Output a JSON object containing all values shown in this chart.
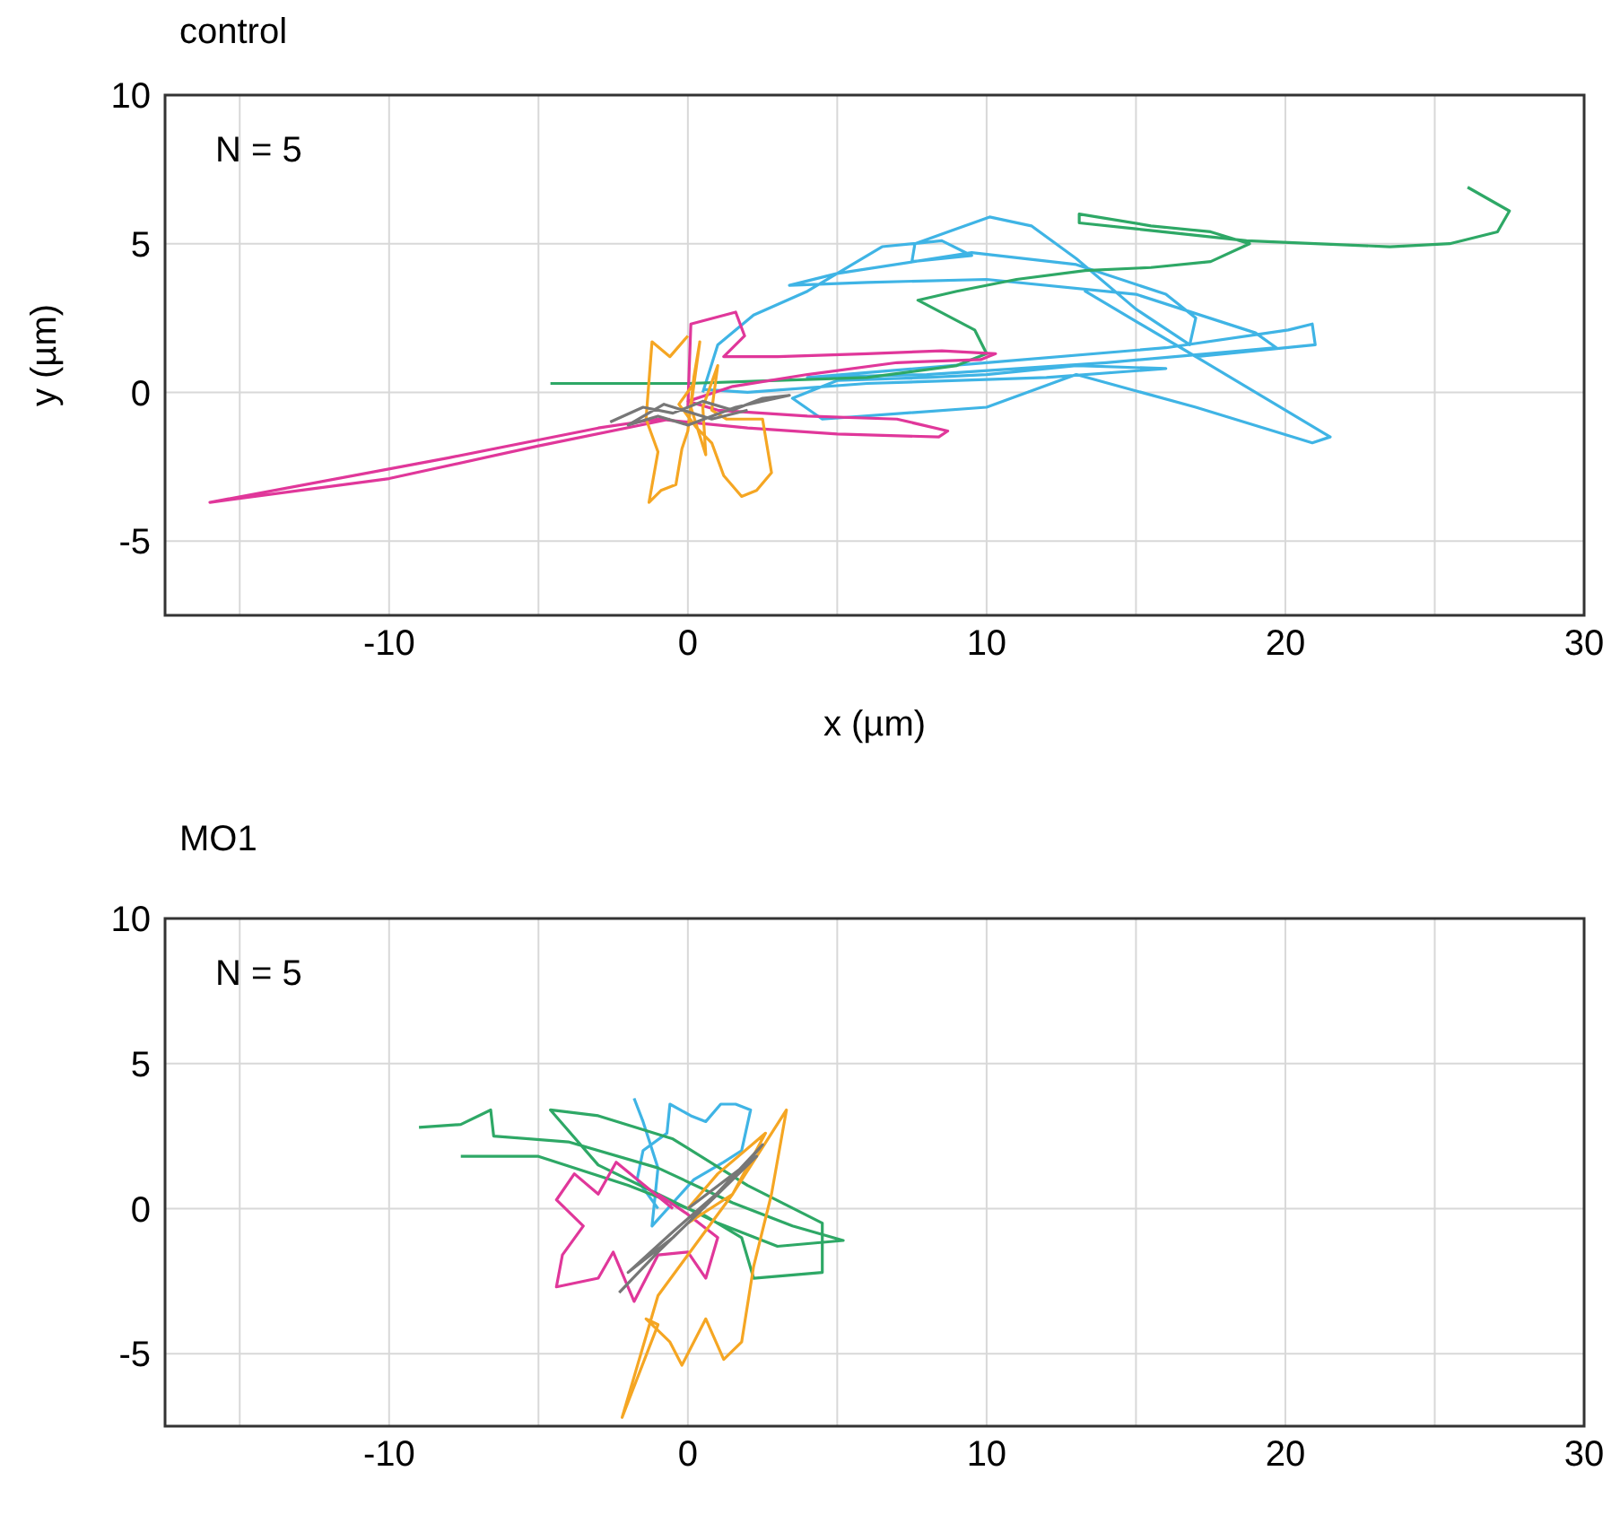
{
  "chart_data": [
    {
      "type": "line",
      "title": "control",
      "xlabel": "x (µm)",
      "ylabel": "y (µm)",
      "annotations": [
        "N = 5"
      ],
      "xlim": [
        -17.5,
        30
      ],
      "ylim": [
        -7.5,
        10
      ],
      "xticks": [
        {
          "value": -15,
          "label": null
        },
        -10,
        {
          "value": -5,
          "label": null
        },
        0,
        {
          "value": 5,
          "label": null
        },
        10,
        {
          "value": 15,
          "label": null
        },
        20,
        {
          "value": 25,
          "label": null
        },
        30
      ],
      "yticks": [
        -5,
        0,
        5,
        10
      ],
      "grid": true,
      "series": [
        {
          "color": "#3fb4e5",
          "x": [
            0.5,
            1,
            2.2,
            4,
            6.5,
            8.5,
            9.5,
            7.5,
            7.6,
            10.1,
            11.5,
            13,
            15,
            16.8,
            17,
            16,
            13,
            9.5,
            5,
            3.4,
            6,
            10,
            15,
            19,
            19.7,
            14,
            8,
            4,
            10,
            16,
            20.1,
            20.9,
            21,
            17,
            13.3,
            16.5,
            19,
            21.5,
            20.9,
            17,
            13,
            10,
            4.5,
            3.5,
            5,
            8,
            10,
            13,
            16,
            12,
            6,
            2,
            0.5
          ],
          "values": [
            0,
            1.6,
            2.6,
            3.4,
            4.9,
            5.1,
            4.6,
            4.4,
            5,
            5.9,
            5.6,
            4.5,
            2.8,
            1.6,
            2.5,
            3.3,
            4.3,
            4.7,
            4,
            3.6,
            3.7,
            3.8,
            3.3,
            2,
            1.5,
            1,
            0.6,
            0.5,
            1,
            1.5,
            2.1,
            2.3,
            1.6,
            1.2,
            3.4,
            1.5,
            0,
            -1.5,
            -1.7,
            -0.5,
            0.6,
            -0.5,
            -0.9,
            -0.2,
            0.4,
            0.5,
            0.6,
            0.9,
            0.8,
            0.5,
            0.3,
            0,
            0.1
          ]
        },
        {
          "color": "#2ea866",
          "x": [
            -4.6,
            -3,
            0,
            3,
            6,
            9,
            10,
            9.6,
            7.7,
            9,
            11,
            13.3,
            15.5,
            17.5,
            18.8,
            17.5,
            15.5,
            13.1,
            13.1,
            15,
            18.7,
            21,
            23.5,
            25.5,
            27.1,
            27.5,
            26.1
          ],
          "values": [
            0.3,
            0.3,
            0.3,
            0.4,
            0.5,
            0.9,
            1.3,
            2.1,
            3.1,
            3.4,
            3.8,
            4.1,
            4.2,
            4.4,
            5,
            5.4,
            5.6,
            6,
            5.7,
            5.5,
            5.1,
            5,
            4.9,
            5,
            5.4,
            6.1,
            6.9
          ]
        },
        {
          "color": "#e0379a",
          "x": [
            0,
            0.1,
            1.6,
            1.9,
            1.2,
            3,
            6,
            8.5,
            10.3,
            9.8,
            7,
            4,
            1.5,
            0,
            1,
            4,
            7,
            8.7,
            8.4,
            5,
            2,
            -1,
            -3,
            -8,
            -16,
            -10,
            -5,
            -0.6
          ],
          "values": [
            -0.5,
            2.3,
            2.7,
            1.9,
            1.2,
            1.2,
            1.3,
            1.4,
            1.3,
            1.1,
            1,
            0.6,
            0.2,
            -0.3,
            -0.6,
            -0.8,
            -0.9,
            -1.3,
            -1.5,
            -1.4,
            -1.2,
            -0.9,
            -1.2,
            -2.2,
            -3.7,
            -2.9,
            -1.8,
            -0.9
          ]
        },
        {
          "color": "#f5a623",
          "x": [
            0,
            -0.6,
            -1.2,
            -1.4,
            -1,
            -1.3,
            -0.9,
            -0.4,
            -0.2,
            0,
            0.2,
            0.4,
            0.1,
            0.6,
            0.5,
            1,
            0.8,
            1.3,
            2.5,
            2.8,
            2.3,
            1.8,
            1.2,
            0.8,
            0.3,
            -0.3,
            0.2
          ],
          "values": [
            1.9,
            1.2,
            1.7,
            -0.9,
            -2,
            -3.7,
            -3.3,
            -3.1,
            -1.9,
            -1.3,
            0.5,
            1.7,
            -0.5,
            -2.1,
            -0.5,
            0.9,
            -0.6,
            -0.9,
            -0.9,
            -2.7,
            -3.3,
            -3.5,
            -2.8,
            -1.7,
            -1.2,
            -0.4,
            0.3
          ]
        },
        {
          "color": "#777777",
          "x": [
            -2.6,
            -1.5,
            -0.5,
            0.5,
            1.5,
            2.5,
            3.4,
            1.6,
            0,
            -1,
            -2,
            -0.8,
            0.8,
            2
          ],
          "values": [
            -1,
            -0.5,
            -0.7,
            -0.3,
            -0.6,
            -0.2,
            -0.1,
            -0.5,
            -1.1,
            -0.8,
            -1.1,
            -0.4,
            -0.9,
            -0.6
          ]
        }
      ]
    },
    {
      "type": "line",
      "title": "MO1",
      "annotations": [
        "N = 5"
      ],
      "xlim": [
        -17.5,
        30
      ],
      "ylim": [
        -7.5,
        10
      ],
      "xticks": [
        {
          "value": -15,
          "label": null
        },
        -10,
        {
          "value": -5,
          "label": null
        },
        0,
        {
          "value": 5,
          "label": null
        },
        10,
        {
          "value": 15,
          "label": null
        },
        20,
        {
          "value": 25,
          "label": null
        },
        30
      ],
      "yticks": [
        -5,
        0,
        5,
        10
      ],
      "grid": true,
      "series": [
        {
          "color": "#3fb4e5",
          "x": [
            -1,
            -1.7,
            -1.5,
            -0.7,
            -0.6,
            0.1,
            0.6,
            1.1,
            1.6,
            2.1,
            1.8,
            1.2,
            0.2,
            -0.5,
            -1.2,
            -1,
            -1.5,
            -1.8
          ],
          "values": [
            0,
            1,
            2,
            2.6,
            3.6,
            3.2,
            3,
            3.6,
            3.6,
            3.4,
            2,
            1.6,
            1,
            0.2,
            -0.6,
            1.4,
            3,
            3.8
          ]
        },
        {
          "color": "#2ea866",
          "x": [
            -9,
            -7.6,
            -6.6,
            -6.5,
            -4,
            -1,
            1.5,
            3.5,
            5.2,
            3,
            1,
            -1,
            -3,
            -4.6,
            -3,
            -0.5,
            2,
            4.5,
            4.5,
            2.2,
            1.8,
            0.5,
            -2,
            -5,
            -7.6
          ],
          "values": [
            2.8,
            2.9,
            3.4,
            2.5,
            2.3,
            1.4,
            0.2,
            -0.6,
            -1.1,
            -1.3,
            -0.5,
            0.5,
            1.5,
            3.4,
            3.2,
            2.4,
            0.8,
            -0.5,
            -2.2,
            -2.4,
            -1,
            -0.2,
            0.8,
            1.8,
            1.8
          ]
        },
        {
          "color": "#e0379a",
          "x": [
            -0.5,
            -2.4,
            -3,
            -3.8,
            -4.4,
            -3.5,
            -4.2,
            -4.4,
            -3,
            -2.5,
            -1.8,
            -1,
            0,
            0.6,
            1,
            0,
            -1
          ],
          "values": [
            0,
            1.6,
            0.5,
            1.2,
            0.3,
            -0.6,
            -1.6,
            -2.7,
            -2.4,
            -1.5,
            -3.2,
            -1.6,
            -1.5,
            -2.4,
            -1,
            -0.2,
            0.5
          ]
        },
        {
          "color": "#f5a623",
          "x": [
            0,
            1,
            2.6,
            1.5,
            -1,
            -2.2,
            -1,
            -1.4,
            -0.6,
            -0.2,
            0.6,
            1.2,
            1.8,
            2.2,
            2.8,
            3.3,
            1.5,
            0
          ],
          "values": [
            0,
            1.2,
            2.6,
            0.5,
            -3,
            -7.2,
            -4,
            -3.8,
            -4.6,
            -5.4,
            -3.8,
            -5.2,
            -4.6,
            -2,
            0.5,
            3.4,
            0.5,
            -0.5
          ]
        },
        {
          "color": "#777777",
          "x": [
            -2.3,
            -1,
            0.5,
            2.5,
            1.5,
            -0.5,
            -2,
            -0.5,
            1,
            2.3,
            0
          ],
          "values": [
            -2.9,
            -1.5,
            0,
            2.2,
            1,
            -0.8,
            -2.2,
            -1,
            0.5,
            1.8,
            0
          ]
        }
      ]
    }
  ]
}
